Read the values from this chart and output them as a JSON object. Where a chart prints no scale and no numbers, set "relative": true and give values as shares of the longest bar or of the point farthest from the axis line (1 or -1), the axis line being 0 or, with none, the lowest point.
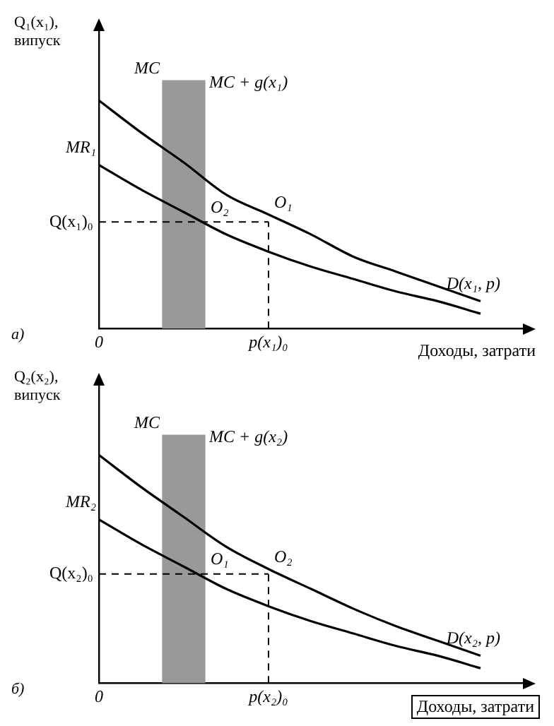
{
  "chart_data": [
    {
      "type": "line",
      "relative": true,
      "ylabel": "Q₁(x₁), випуск",
      "xlabel": "Доходы, затрати",
      "tick_labels": "x",
      "categories": [
        "0",
        null,
        null,
        null,
        "p(x₁)₀",
        null,
        null,
        null,
        null,
        null,
        null
      ],
      "series": [
        {
          "type": "bar",
          "color": "#999999",
          "values": [
            null,
            null,
            1,
            null,
            null,
            null,
            null,
            null,
            null,
            null,
            null
          ]
        },
        {
          "name": "D(x₁, p)",
          "color": "#000000",
          "values": [
            0.92,
            0.79,
            0.67,
            0.54,
            0.46,
            0.38,
            0.29,
            0.23,
            0.17,
            0.11,
            null
          ]
        },
        {
          "name": "MR₁",
          "color": "#000000",
          "values": [
            0.66,
            0.56,
            0.47,
            0.38,
            0.31,
            0.25,
            0.2,
            0.15,
            0.11,
            0.06,
            null
          ]
        }
      ],
      "ref_lines": [
        {
          "axis": "y",
          "value": 0.43,
          "label": "Q(x₁)₀",
          "line_style": "dashed"
        },
        {
          "axis": "x",
          "value": "p(x₁)₀",
          "line_style": "dashed"
        }
      ],
      "annotations": [
        {
          "text": "O₂",
          "y": 0.43
        },
        {
          "text": "O₁",
          "x": "p(x₁)₀",
          "y": 0.45
        },
        "MC",
        "MC + g(x₁)",
        "а)"
      ]
    },
    {
      "type": "line",
      "relative": true,
      "ylabel": "Q₂(x₂), випуск",
      "xlabel": "Доходы, затрати",
      "tick_labels": "x",
      "categories": [
        "0",
        null,
        null,
        null,
        "p(x₂)₀",
        null,
        null,
        null,
        null,
        null,
        null
      ],
      "series": [
        {
          "type": "bar",
          "color": "#999999",
          "values": [
            null,
            null,
            1,
            null,
            null,
            null,
            null,
            null,
            null,
            null,
            null
          ]
        },
        {
          "name": "D(x₂, p)",
          "color": "#000000",
          "values": [
            0.92,
            0.79,
            0.67,
            0.55,
            0.46,
            0.38,
            0.3,
            0.23,
            0.17,
            0.11,
            null
          ]
        },
        {
          "name": "MR₂",
          "color": "#000000",
          "values": [
            0.66,
            0.56,
            0.47,
            0.38,
            0.31,
            0.25,
            0.2,
            0.15,
            0.11,
            0.06,
            null
          ]
        }
      ],
      "ref_lines": [
        {
          "axis": "y",
          "value": 0.44,
          "label": "Q(x₂)₀",
          "line_style": "dashed"
        },
        {
          "axis": "x",
          "value": "p(x₂)₀",
          "line_style": "dashed"
        }
      ],
      "annotations": [
        {
          "text": "O₁",
          "y": 0.44
        },
        {
          "text": "O₂",
          "x": "p(x₂)₀",
          "y": 0.45
        },
        "MC",
        "MC + g(x₂)",
        "б)"
      ]
    }
  ]
}
